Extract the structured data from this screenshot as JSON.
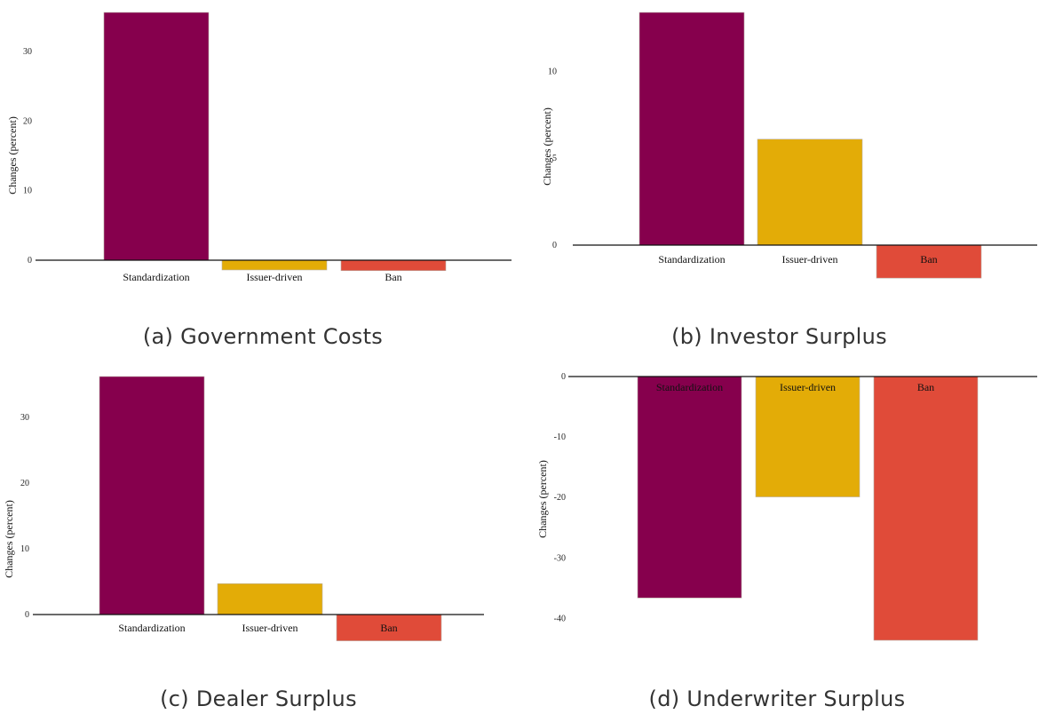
{
  "colors": {
    "Standardization": "#86004d",
    "Issuer-driven": "#e3ac07",
    "Ban": "#e04b39"
  },
  "chart_data": [
    {
      "type": "bar",
      "caption": "(a) Government Costs",
      "ylabel": "Changes (percent)",
      "categories": [
        "Standardization",
        "Issuer-driven",
        "Ban"
      ],
      "values": [
        35.6,
        -1.4,
        -1.5
      ],
      "ylim": [
        -1.5,
        35.6
      ],
      "yticks": [
        0,
        10,
        20,
        30
      ],
      "grid": false
    },
    {
      "type": "bar",
      "caption": "(b) Investor Surplus",
      "ylabel": "Changes (percent)",
      "categories": [
        "Standardization",
        "Issuer-driven",
        "Ban"
      ],
      "values": [
        13.4,
        6.1,
        -1.9
      ],
      "ylim": [
        -1.9,
        13.4
      ],
      "yticks": [
        0,
        5,
        10
      ],
      "grid": false
    },
    {
      "type": "bar",
      "caption": "(c) Dealer Surplus",
      "ylabel": "Changes (percent)",
      "categories": [
        "Standardization",
        "Issuer-driven",
        "Ban"
      ],
      "values": [
        36.2,
        4.7,
        -4.0
      ],
      "ylim": [
        -4.0,
        36.2
      ],
      "yticks": [
        0,
        10,
        20,
        30
      ],
      "grid": false
    },
    {
      "type": "bar",
      "caption": "(d) Underwriter Surplus",
      "ylabel": "Changes (percent)",
      "categories": [
        "Standardization",
        "Issuer-driven",
        "Ban"
      ],
      "values": [
        -36.6,
        -19.9,
        -43.6
      ],
      "ylim": [
        -43.6,
        0
      ],
      "yticks": [
        0,
        -10,
        -20,
        -30,
        -40
      ],
      "grid": false
    }
  ]
}
